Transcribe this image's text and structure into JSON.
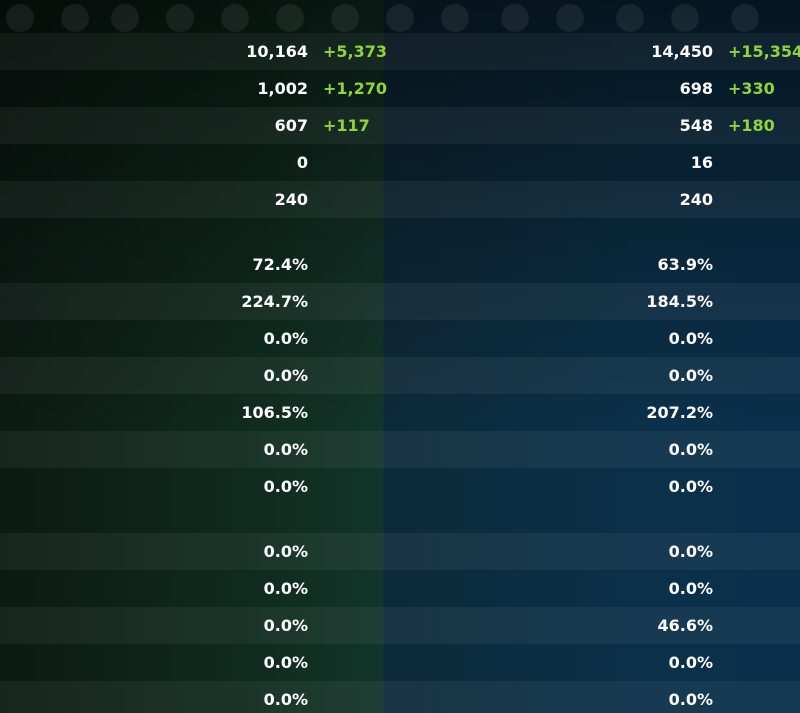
{
  "sections": [
    {
      "rows": [
        {
          "left": {
            "value": "10,164",
            "bonus": "+5,373"
          },
          "right": {
            "value": "14,450",
            "bonus": "+15,354"
          }
        },
        {
          "left": {
            "value": "1,002",
            "bonus": "+1,270"
          },
          "right": {
            "value": "698",
            "bonus": "+330"
          }
        },
        {
          "left": {
            "value": "607",
            "bonus": "+117"
          },
          "right": {
            "value": "548",
            "bonus": "+180"
          }
        },
        {
          "left": {
            "value": "0"
          },
          "right": {
            "value": "16"
          }
        },
        {
          "left": {
            "value": "240"
          },
          "right": {
            "value": "240"
          }
        }
      ]
    },
    {
      "rows": [
        {
          "left": {
            "value": "72.4%"
          },
          "right": {
            "value": "63.9%"
          }
        },
        {
          "left": {
            "value": "224.7%"
          },
          "right": {
            "value": "184.5%"
          }
        },
        {
          "left": {
            "value": "0.0%"
          },
          "right": {
            "value": "0.0%"
          }
        },
        {
          "left": {
            "value": "0.0%"
          },
          "right": {
            "value": "0.0%"
          }
        },
        {
          "left": {
            "value": "106.5%"
          },
          "right": {
            "value": "207.2%"
          }
        },
        {
          "left": {
            "value": "0.0%"
          },
          "right": {
            "value": "0.0%"
          }
        },
        {
          "left": {
            "value": "0.0%"
          },
          "right": {
            "value": "0.0%"
          }
        }
      ]
    },
    {
      "rows": [
        {
          "left": {
            "value": "0.0%"
          },
          "right": {
            "value": "0.0%"
          }
        },
        {
          "left": {
            "value": "0.0%"
          },
          "right": {
            "value": "0.0%"
          }
        },
        {
          "left": {
            "value": "0.0%"
          },
          "right": {
            "value": "46.6%"
          }
        },
        {
          "left": {
            "value": "0.0%"
          },
          "right": {
            "value": "0.0%"
          }
        },
        {
          "left": {
            "value": "0.0%"
          },
          "right": {
            "value": "0.0%"
          }
        }
      ]
    }
  ]
}
